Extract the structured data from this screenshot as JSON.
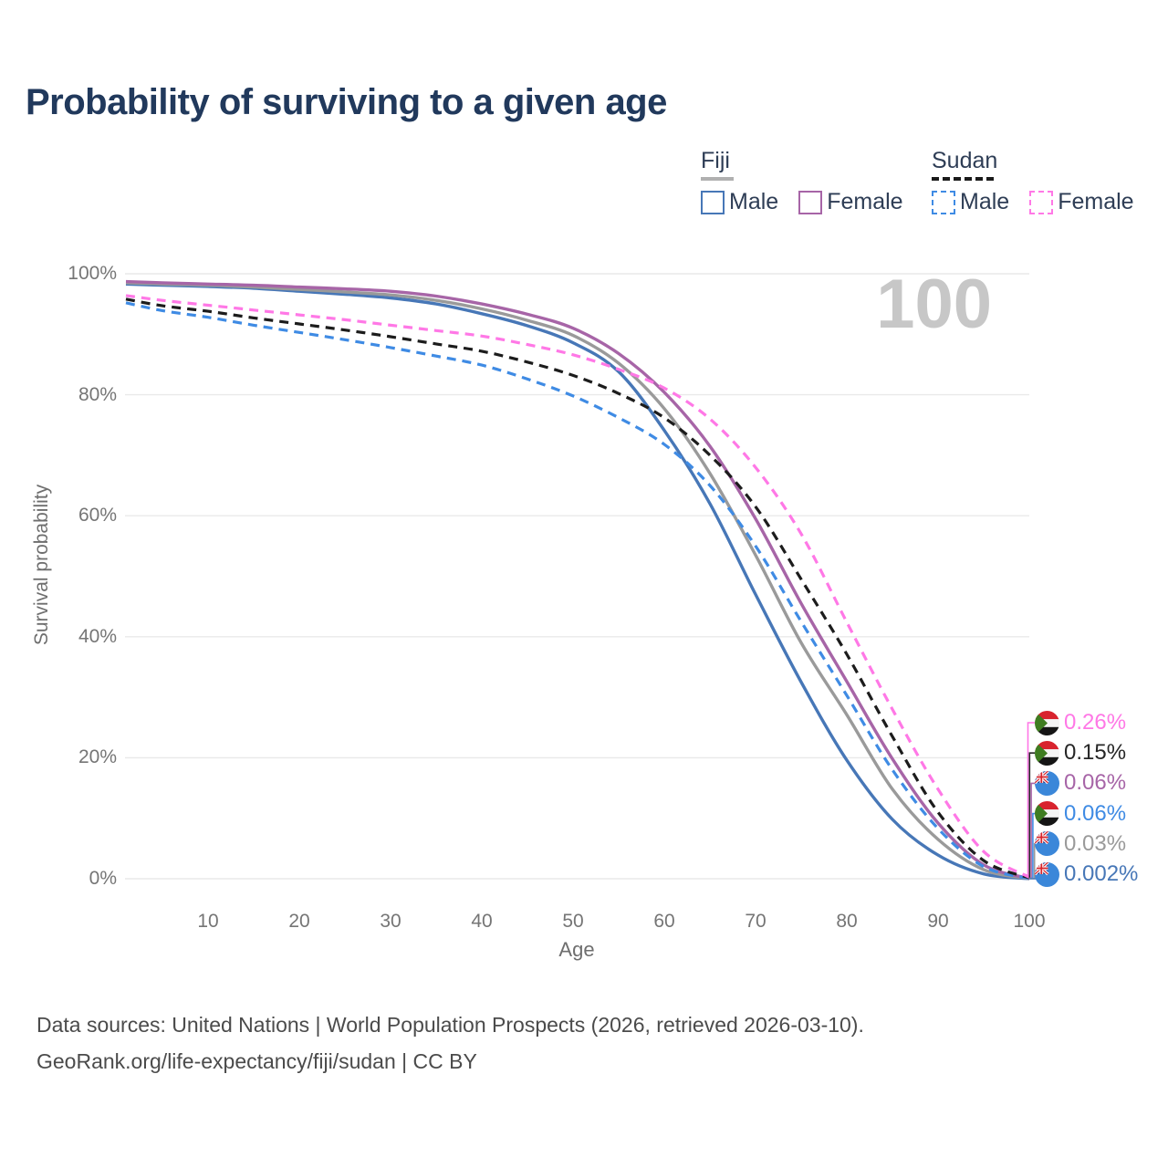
{
  "title": "Probability of surviving to a given age",
  "legend": {
    "groups": [
      {
        "name": "Fiji",
        "line_style": "solid",
        "key_color": "#b0b0b0",
        "items": [
          {
            "label": "Male",
            "color": "#4777b7"
          },
          {
            "label": "Female",
            "color": "#a765a7"
          }
        ]
      },
      {
        "name": "Sudan",
        "line_style": "dashed",
        "key_color": "#1a1a1a",
        "items": [
          {
            "label": "Male",
            "color": "#3f8be4"
          },
          {
            "label": "Female",
            "color": "#ff78e6"
          }
        ]
      }
    ]
  },
  "chart_data": {
    "type": "line",
    "title": "Probability of surviving to a given age",
    "xlabel": "Age",
    "ylabel": "Survival probability",
    "watermark": "100",
    "xlim": [
      0,
      100
    ],
    "ylim": [
      0,
      100
    ],
    "grid": "horizontal",
    "x_ticks": [
      10,
      20,
      30,
      40,
      50,
      60,
      70,
      80,
      90,
      100
    ],
    "y_ticks": [
      "100%",
      "80%",
      "60%",
      "40%",
      "20%",
      "0%"
    ],
    "ages": [
      1,
      5,
      10,
      15,
      20,
      25,
      30,
      35,
      40,
      45,
      50,
      55,
      60,
      65,
      70,
      75,
      80,
      85,
      90,
      95,
      100
    ],
    "series": [
      {
        "id": "fiji-male",
        "country": "Fiji",
        "sex": "Male",
        "color": "#4777b7",
        "dashed": false,
        "flag": "fiji",
        "values": [
          98.3,
          98.1,
          97.9,
          97.6,
          97.1,
          96.6,
          96.0,
          95.0,
          93.4,
          91.4,
          88.6,
          83.8,
          74.1,
          62.0,
          47.0,
          32.5,
          19.6,
          9.8,
          3.9,
          0.8,
          0.002
        ]
      },
      {
        "id": "fiji-both",
        "country": "Fiji",
        "sex": "Both",
        "color": "#9a9a9a",
        "dashed": false,
        "flag": "fiji",
        "values": [
          98.5,
          98.3,
          98.1,
          97.8,
          97.4,
          97.0,
          96.5,
          95.6,
          94.2,
          92.3,
          89.8,
          85.2,
          77.7,
          67.0,
          53.5,
          39.0,
          27.1,
          14.8,
          6.5,
          1.5,
          0.03
        ]
      },
      {
        "id": "fiji-female",
        "country": "Fiji",
        "sex": "Female",
        "color": "#a765a7",
        "dashed": false,
        "flag": "fiji",
        "values": [
          98.7,
          98.5,
          98.3,
          98.1,
          97.8,
          97.5,
          97.1,
          96.3,
          95.0,
          93.3,
          91.0,
          86.8,
          80.4,
          71.5,
          59.5,
          45.5,
          32.6,
          19.8,
          9.2,
          2.3,
          0.06
        ]
      },
      {
        "id": "sudan-male",
        "country": "Sudan",
        "sex": "Male",
        "color": "#3f8be4",
        "dashed": true,
        "flag": "sudan",
        "values": [
          95.2,
          93.9,
          92.8,
          91.5,
          90.3,
          89.1,
          87.8,
          86.4,
          84.9,
          82.6,
          79.8,
          76.2,
          71.8,
          65.0,
          55.0,
          42.5,
          30.3,
          18.0,
          8.3,
          2.0,
          0.06
        ]
      },
      {
        "id": "sudan-both",
        "country": "Sudan",
        "sex": "Both",
        "color": "#1c1c1c",
        "dashed": true,
        "flag": "sudan",
        "values": [
          95.8,
          94.7,
          93.8,
          92.7,
          91.7,
          90.7,
          89.6,
          88.4,
          87.2,
          85.4,
          83.2,
          80.2,
          76.2,
          70.0,
          61.5,
          49.5,
          37.1,
          23.5,
          11.0,
          3.0,
          0.15
        ]
      },
      {
        "id": "sudan-female",
        "country": "Sudan",
        "sex": "Female",
        "color": "#ff78e6",
        "dashed": true,
        "flag": "sudan",
        "values": [
          96.4,
          95.6,
          94.8,
          94.0,
          93.2,
          92.4,
          91.5,
          90.6,
          89.7,
          88.3,
          86.6,
          84.2,
          81.1,
          76.0,
          68.0,
          57.0,
          42.4,
          28.0,
          14.8,
          4.5,
          0.26
        ]
      }
    ],
    "end_labels": [
      {
        "series": "sudan-female",
        "text": "0.26%",
        "color": "#ff78e6",
        "flag": "sudan"
      },
      {
        "series": "sudan-both",
        "text": "0.15%",
        "color": "#262626",
        "flag": "sudan"
      },
      {
        "series": "fiji-female",
        "text": "0.06%",
        "color": "#a765a7",
        "flag": "fiji"
      },
      {
        "series": "sudan-male",
        "text": "0.06%",
        "color": "#3f8be4",
        "flag": "sudan"
      },
      {
        "series": "fiji-both",
        "text": "0.03%",
        "color": "#9a9a9a",
        "flag": "fiji"
      },
      {
        "series": "fiji-male",
        "text": "0.002%",
        "color": "#4777b7",
        "flag": "fiji"
      }
    ]
  },
  "footer": {
    "line1": "Data sources: United Nations | World Population Prospects (2026, retrieved 2026-03-10).",
    "line2": "GeoRank.org/life-expectancy/fiji/sudan | CC BY"
  }
}
